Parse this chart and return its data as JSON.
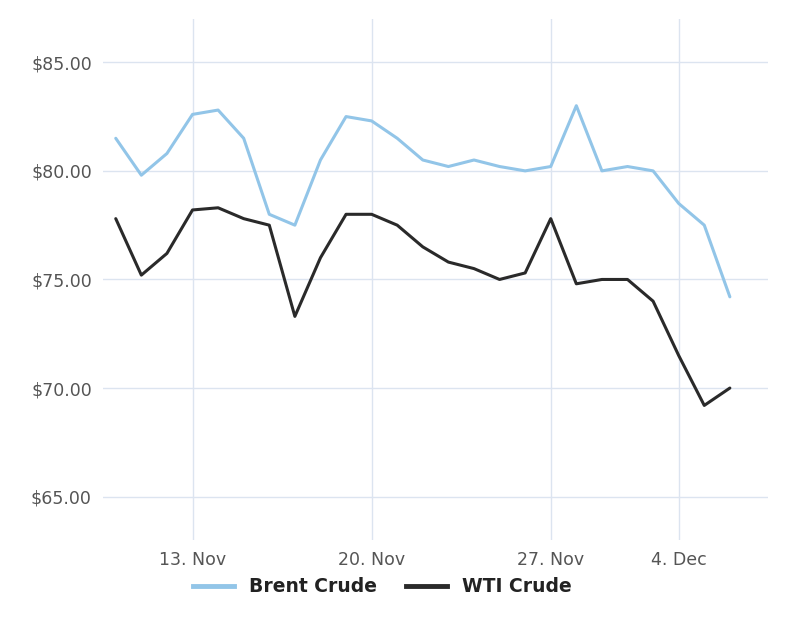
{
  "brent_x": [
    0,
    1,
    2,
    3,
    4,
    5,
    6,
    7,
    8,
    9,
    10,
    11,
    12,
    13,
    14,
    15,
    16,
    17,
    18,
    19,
    20,
    21,
    22,
    23,
    24
  ],
  "brent_y": [
    81.5,
    79.8,
    80.8,
    82.6,
    82.8,
    81.5,
    78.0,
    77.5,
    80.5,
    82.5,
    82.3,
    81.5,
    80.5,
    80.2,
    80.5,
    80.2,
    80.0,
    80.2,
    83.0,
    80.0,
    80.2,
    80.0,
    78.5,
    77.5,
    74.2
  ],
  "wti_x": [
    0,
    1,
    2,
    3,
    4,
    5,
    6,
    7,
    8,
    9,
    10,
    11,
    12,
    13,
    14,
    15,
    16,
    17,
    18,
    19,
    20,
    21,
    22,
    23,
    24
  ],
  "wti_y": [
    77.8,
    75.2,
    76.2,
    78.2,
    78.3,
    77.8,
    77.5,
    73.3,
    76.0,
    78.0,
    78.0,
    77.5,
    76.5,
    75.8,
    75.5,
    75.0,
    75.3,
    77.8,
    74.8,
    75.0,
    75.0,
    74.0,
    71.5,
    69.2,
    70.0
  ],
  "xlim": [
    -0.5,
    25.5
  ],
  "ylim": [
    63.0,
    87.0
  ],
  "ytick_values": [
    65.0,
    70.0,
    75.0,
    80.0,
    85.0
  ],
  "ytick_labels": [
    "$65.00",
    "$70.00",
    "$75.00",
    "$80.00",
    "$85.00"
  ],
  "xtick_positions": [
    3,
    10,
    17,
    22
  ],
  "xtick_labels": [
    "13. Nov",
    "20. Nov",
    "27. Nov",
    "4. Dec"
  ],
  "brent_color": "#92c5e8",
  "wti_color": "#2a2a2a",
  "grid_color": "#dce4f0",
  "bg_color": "#ffffff",
  "tick_color": "#555555",
  "legend_brent": "Brent Crude",
  "legend_wti": "WTI Crude",
  "line_width": 2.2,
  "tick_fontsize": 12.5,
  "legend_fontsize": 13.5
}
